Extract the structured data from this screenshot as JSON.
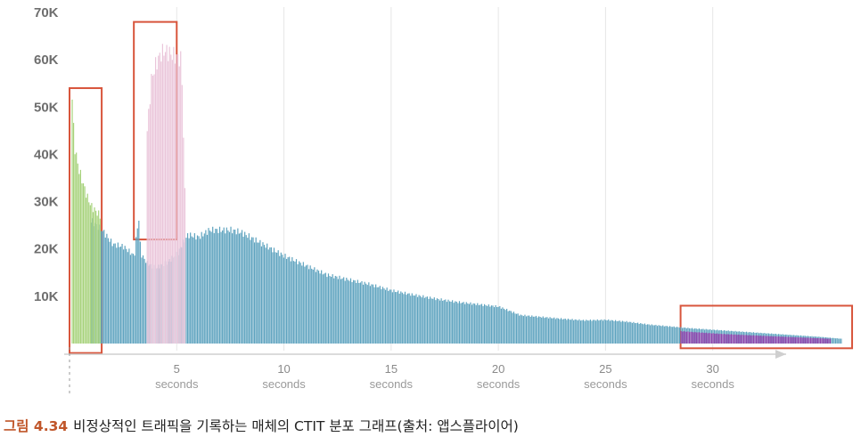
{
  "chart_data": {
    "type": "bar",
    "title": "",
    "xlabel": "",
    "ylabel": "",
    "ylim": [
      0,
      70000
    ],
    "xlim": [
      0,
      36
    ],
    "y_ticks": [
      {
        "value": 10000,
        "label": "10K"
      },
      {
        "value": 20000,
        "label": "20K"
      },
      {
        "value": 30000,
        "label": "30K"
      },
      {
        "value": 40000,
        "label": "40K"
      },
      {
        "value": 50000,
        "label": "50K"
      },
      {
        "value": 60000,
        "label": "60K"
      },
      {
        "value": 70000,
        "label": "70K"
      }
    ],
    "x_ticks": [
      {
        "value": 5,
        "label": "5",
        "unit": "seconds"
      },
      {
        "value": 10,
        "label": "10",
        "unit": "seconds"
      },
      {
        "value": 15,
        "label": "15",
        "unit": "seconds"
      },
      {
        "value": 20,
        "label": "20",
        "unit": "seconds"
      },
      {
        "value": 25,
        "label": "25",
        "unit": "seconds"
      },
      {
        "value": 30,
        "label": "30",
        "unit": "seconds"
      }
    ],
    "series": [
      {
        "color": "#5ea3bf",
        "points": [
          [
            1,
            26000
          ],
          [
            1.5,
            24000
          ],
          [
            2,
            21000
          ],
          [
            2.5,
            20500
          ],
          [
            3,
            18500
          ],
          [
            3.2,
            27000
          ],
          [
            3.3,
            19000
          ],
          [
            3.6,
            17000
          ],
          [
            4,
            16000
          ],
          [
            4.5,
            17000
          ],
          [
            5,
            19000
          ],
          [
            5.5,
            23000
          ],
          [
            6,
            22500
          ],
          [
            6.5,
            24000
          ],
          [
            7,
            24000
          ],
          [
            7.5,
            24000
          ],
          [
            8,
            23500
          ],
          [
            9,
            21000
          ],
          [
            10,
            18500
          ],
          [
            11,
            16500
          ],
          [
            12,
            14500
          ],
          [
            13,
            13500
          ],
          [
            14,
            12500
          ],
          [
            15,
            11200
          ],
          [
            16,
            10300
          ],
          [
            17,
            9500
          ],
          [
            18,
            8800
          ],
          [
            19,
            8300
          ],
          [
            20,
            7800
          ],
          [
            21,
            6000
          ],
          [
            22,
            5600
          ],
          [
            23,
            5200
          ],
          [
            24,
            4900
          ],
          [
            25,
            5000
          ],
          [
            26,
            4600
          ],
          [
            27,
            4000
          ],
          [
            28,
            3600
          ],
          [
            29,
            3200
          ],
          [
            30,
            2900
          ],
          [
            31,
            2600
          ],
          [
            32,
            2300
          ],
          [
            33,
            2000
          ],
          [
            34,
            1700
          ],
          [
            35,
            1400
          ],
          [
            36,
            1000
          ]
        ]
      },
      {
        "color": "#a6d27a",
        "points": [
          [
            0.1,
            52000
          ],
          [
            0.2,
            42000
          ],
          [
            0.4,
            37000
          ],
          [
            0.6,
            34000
          ],
          [
            0.8,
            31000
          ],
          [
            1,
            29000
          ],
          [
            1.2,
            28000
          ],
          [
            1.4,
            27000
          ]
        ]
      },
      {
        "color": "#eac5da",
        "points": [
          [
            3.6,
            45000
          ],
          [
            3.8,
            56000
          ],
          [
            4.0,
            59000
          ],
          [
            4.2,
            61000
          ],
          [
            4.4,
            62000
          ],
          [
            4.6,
            61500
          ],
          [
            4.8,
            61000
          ],
          [
            5.0,
            60500
          ],
          [
            5.2,
            60000
          ],
          [
            5.4,
            24000
          ]
        ]
      },
      {
        "color": "#8e44ad",
        "points": [
          [
            28.5,
            2600
          ],
          [
            29.5,
            2300
          ],
          [
            30.5,
            2000
          ],
          [
            31.5,
            1800
          ],
          [
            32.5,
            1600
          ],
          [
            33.5,
            1400
          ],
          [
            34.5,
            1200
          ],
          [
            35.5,
            1000
          ]
        ]
      }
    ],
    "highlight_regions": [
      {
        "x": [
          0,
          1.5
        ],
        "y": [
          -2000,
          54000
        ]
      },
      {
        "x": [
          3,
          5
        ],
        "y": [
          22000,
          68000
        ]
      },
      {
        "x": [
          28.5,
          36.5
        ],
        "y": [
          -1000,
          8000
        ]
      }
    ],
    "grid": "vertical"
  },
  "colors": {
    "highlight_box": "#d8553c",
    "grid": "#e6e6e6",
    "axis": "#cfcfcf"
  },
  "caption": {
    "number": "그림 4.34",
    "text": "비정상적인 트래픽을 기록하는 매체의 CTIT 분포 그래프(출처: 앱스플라이어)"
  }
}
